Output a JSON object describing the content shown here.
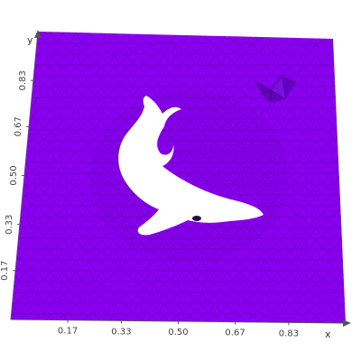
{
  "figure": {
    "kind": "triangular mesh of a unit square with a dolphin-shaped hole",
    "mesh_color": "#8a00f0",
    "wire_color": "#5a00a8",
    "hole_color": "#ffffff",
    "axis_color": "#555555"
  },
  "axes": {
    "x": {
      "name": "x",
      "range": [
        0,
        1
      ],
      "ticks": [
        {
          "value": 0.17,
          "label": "0.17"
        },
        {
          "value": 0.33,
          "label": "0.33"
        },
        {
          "value": 0.5,
          "label": "0.50"
        },
        {
          "value": 0.67,
          "label": "0.67"
        },
        {
          "value": 0.83,
          "label": "0.83"
        }
      ]
    },
    "y": {
      "name": "y",
      "range": [
        0,
        1
      ],
      "ticks": [
        {
          "value": 0.17,
          "label": "0.17"
        },
        {
          "value": 0.33,
          "label": "0.33"
        },
        {
          "value": 0.5,
          "label": "0.50"
        },
        {
          "value": 0.67,
          "label": "0.67"
        },
        {
          "value": 0.83,
          "label": "0.83"
        }
      ]
    }
  }
}
